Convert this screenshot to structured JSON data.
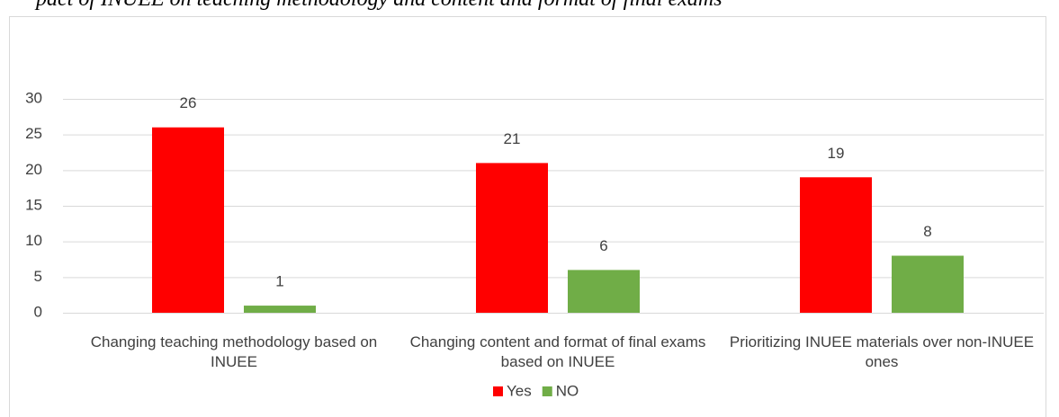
{
  "chart_data": {
    "type": "bar",
    "title": "pact of INUEE on teaching methodology and content and format of final exams",
    "categories": [
      "Changing teaching methodology based on INUEE",
      "Changing content and format of final exams based on INUEE",
      "Prioritizing INUEE materials over non-INUEE ones"
    ],
    "series": [
      {
        "name": "Yes",
        "color": "#ff0000",
        "values": [
          26,
          21,
          19
        ]
      },
      {
        "name": "NO",
        "color": "#70ad47",
        "values": [
          1,
          6,
          8
        ]
      }
    ],
    "ylim": [
      0,
      30
    ],
    "yticks": [
      0,
      5,
      10,
      15,
      20,
      25,
      30
    ],
    "grid": true,
    "legend": "bottom"
  }
}
